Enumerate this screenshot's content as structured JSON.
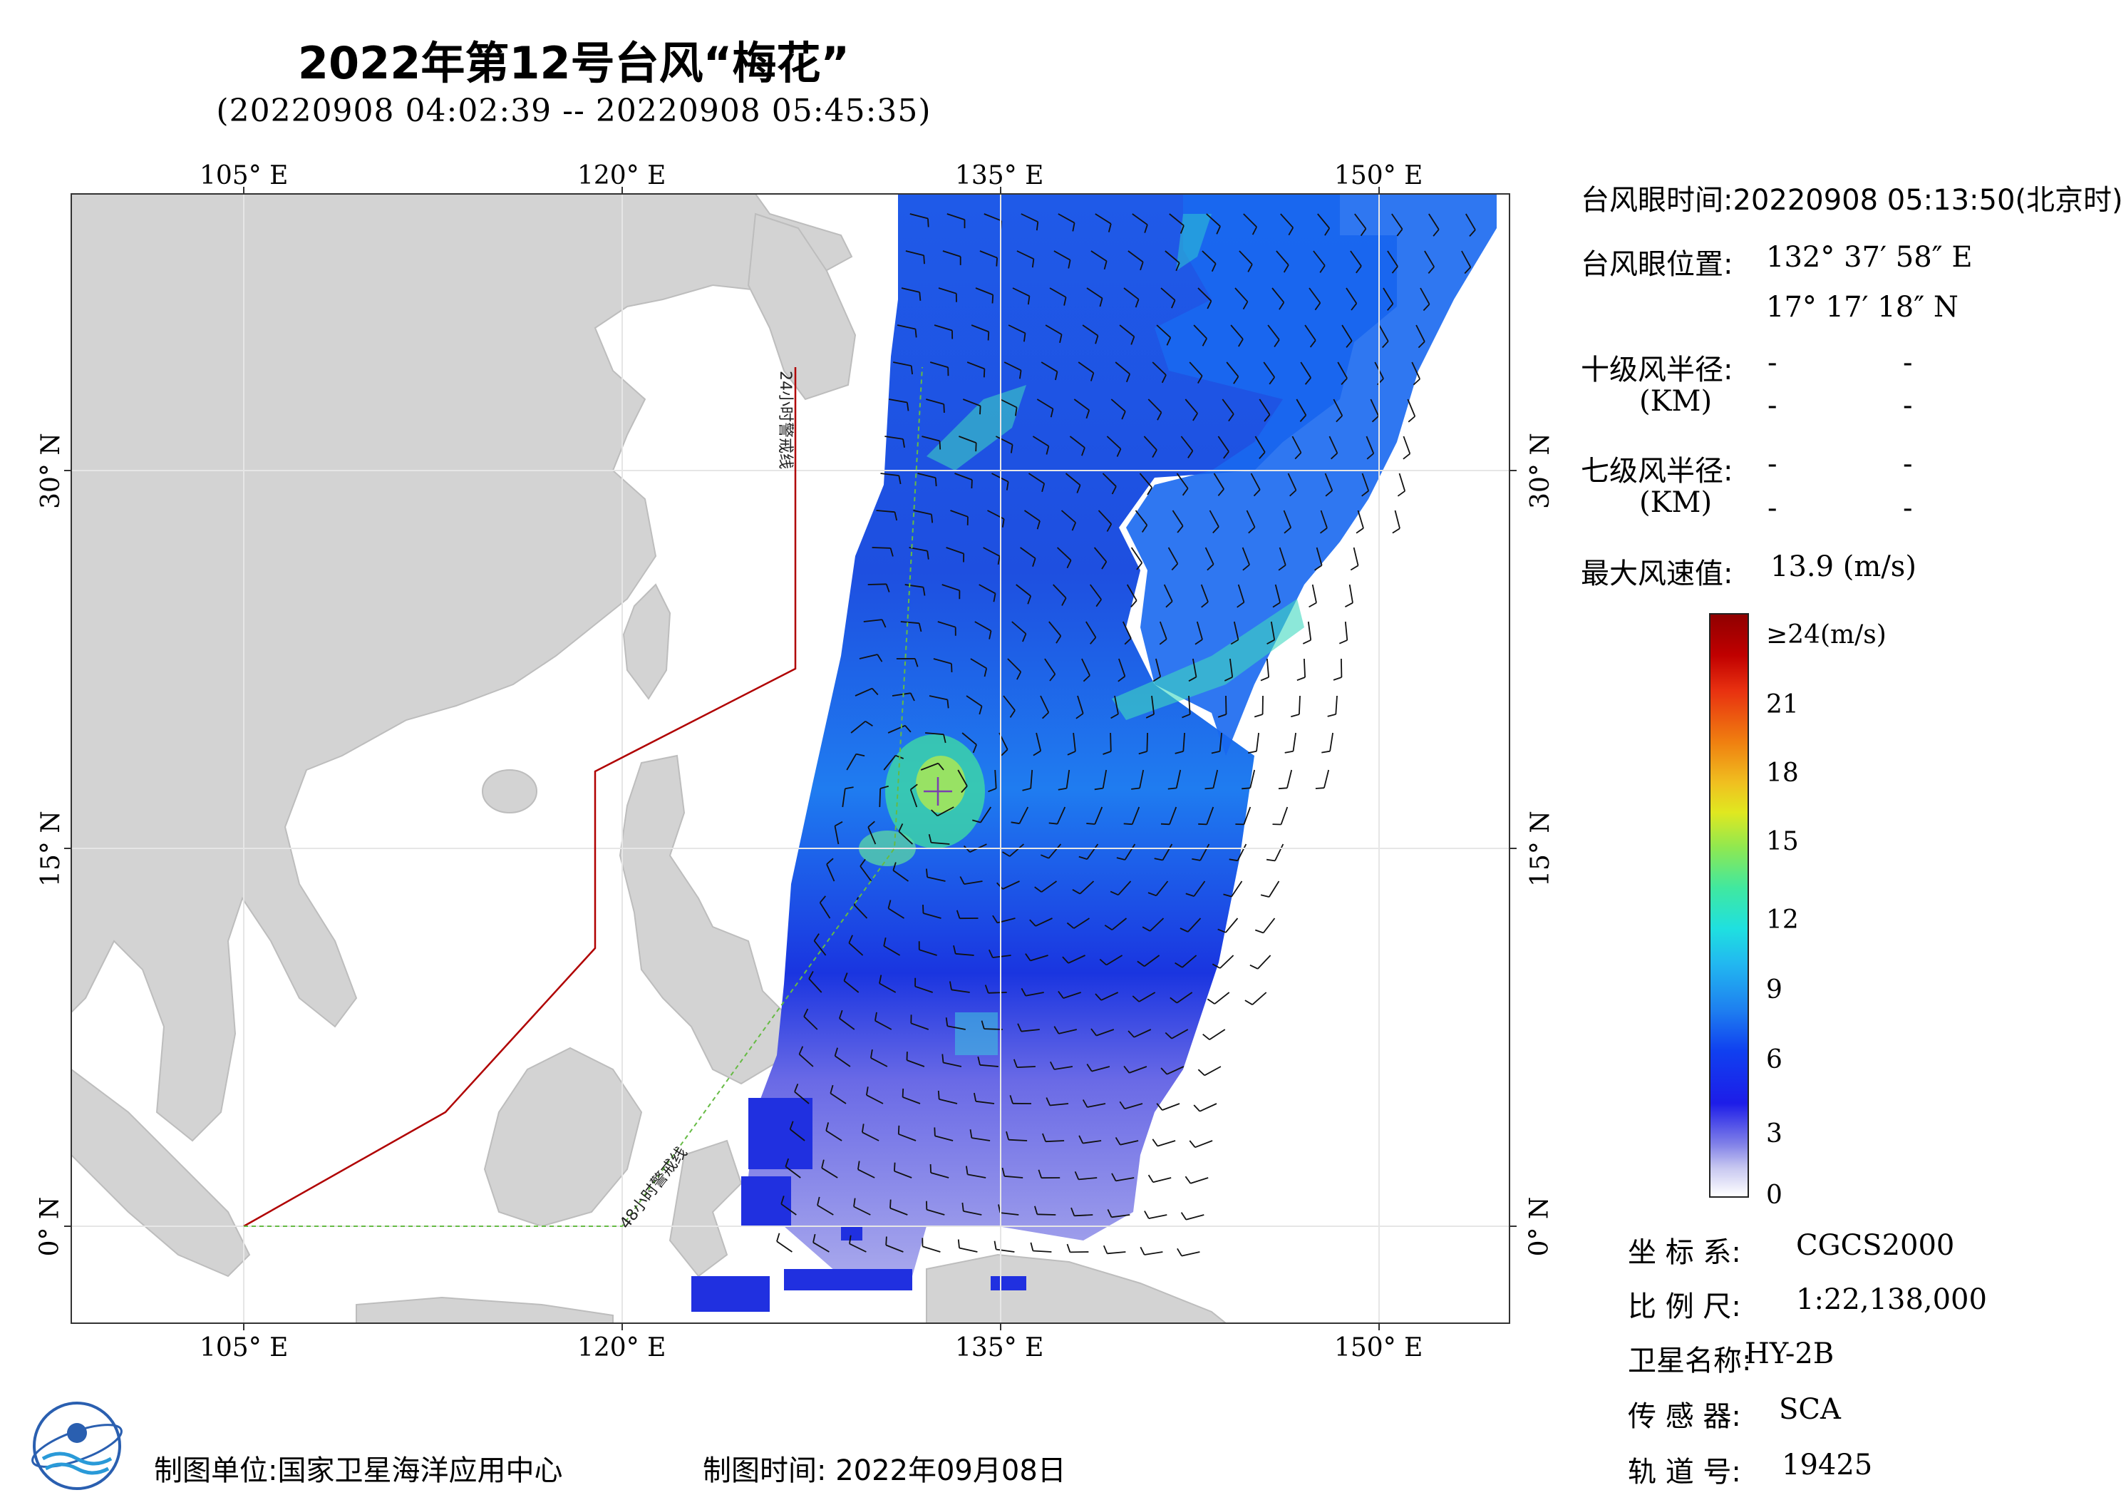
{
  "header": {
    "title": "2022年第12号台风“梅花”",
    "subtitle": "(20220908 04:02:39 -- 20220908 05:45:35)"
  },
  "map": {
    "lon_labels": [
      "105° E",
      "120° E",
      "135° E",
      "150° E"
    ],
    "lat_labels": [
      "30° N",
      "15° N",
      "0° N"
    ],
    "line_24h": "24小时警戒线",
    "line_48h": "48小时警戒线",
    "colors": {
      "land": "#d3d3d3",
      "ocean": "#ffffff",
      "line_24h": "#b00000",
      "line_48h": "#66bb44",
      "eye_marker": "#7a3fb0"
    }
  },
  "info": {
    "eye_time": "台风眼时间:20220908 05:13:50(北京时)",
    "eye_pos_label": "台风眼位置:",
    "eye_lon": "132° 37′ 58″ E",
    "eye_lat": "17° 17′ 18″ N",
    "r10_label": "十级风半径:",
    "r7_label": "七级风半径:",
    "km": "(KM)",
    "dash": "-",
    "max_wind_label": "最大风速值:",
    "max_wind": "13.9  (m/s)"
  },
  "colorbar": {
    "ticks": [
      "≥24(m/s)",
      "21",
      "18",
      "15",
      "12",
      "9",
      "6",
      "3",
      "0"
    ]
  },
  "meta": {
    "crs_label": "坐 标 系:",
    "crs": "CGCS2000",
    "scale_label": "比 例 尺:",
    "scale": "1:22,138,000",
    "sat_label": "卫星名称:",
    "sat": "HY-2B",
    "sensor_label": "传 感 器:",
    "sensor": "SCA",
    "orbit_label": "轨 道 号:",
    "orbit": "19425"
  },
  "footer": {
    "unit": "制图单位:国家卫星海洋应用中心",
    "time": "制图时间:  2022年09月08日"
  }
}
